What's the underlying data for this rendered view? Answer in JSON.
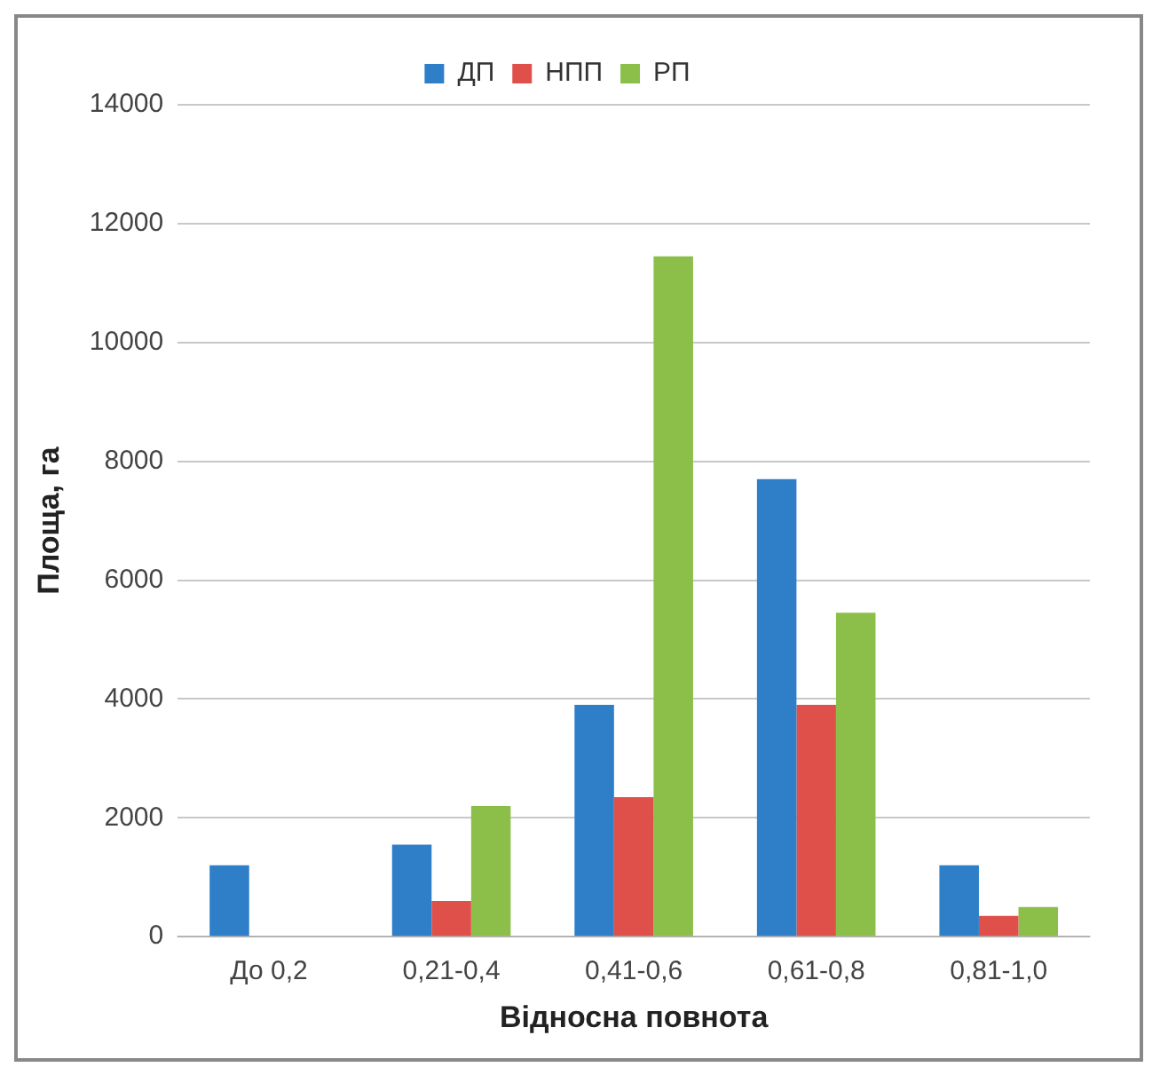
{
  "chart_data": {
    "type": "bar",
    "xlabel": "Відносна повнота",
    "ylabel": "Площа, га",
    "categories": [
      "До 0,2",
      "0,21-0,4",
      "0,41-0,6",
      "0,61-0,8",
      "0,81-1,0"
    ],
    "series": [
      {
        "name": "ДП",
        "color": "#2e7fc8",
        "values": [
          1200,
          1550,
          3900,
          7700,
          1200
        ]
      },
      {
        "name": "НПП",
        "color": "#e0504a",
        "values": [
          0,
          600,
          2350,
          3900,
          350
        ]
      },
      {
        "name": "РП",
        "color": "#8cbf4a",
        "values": [
          0,
          2200,
          11450,
          5450,
          500
        ]
      }
    ],
    "ylim": [
      0,
      14000
    ],
    "yticks": [
      0,
      2000,
      4000,
      6000,
      8000,
      10000,
      12000,
      14000
    ],
    "grid": "y",
    "legend": "top"
  }
}
